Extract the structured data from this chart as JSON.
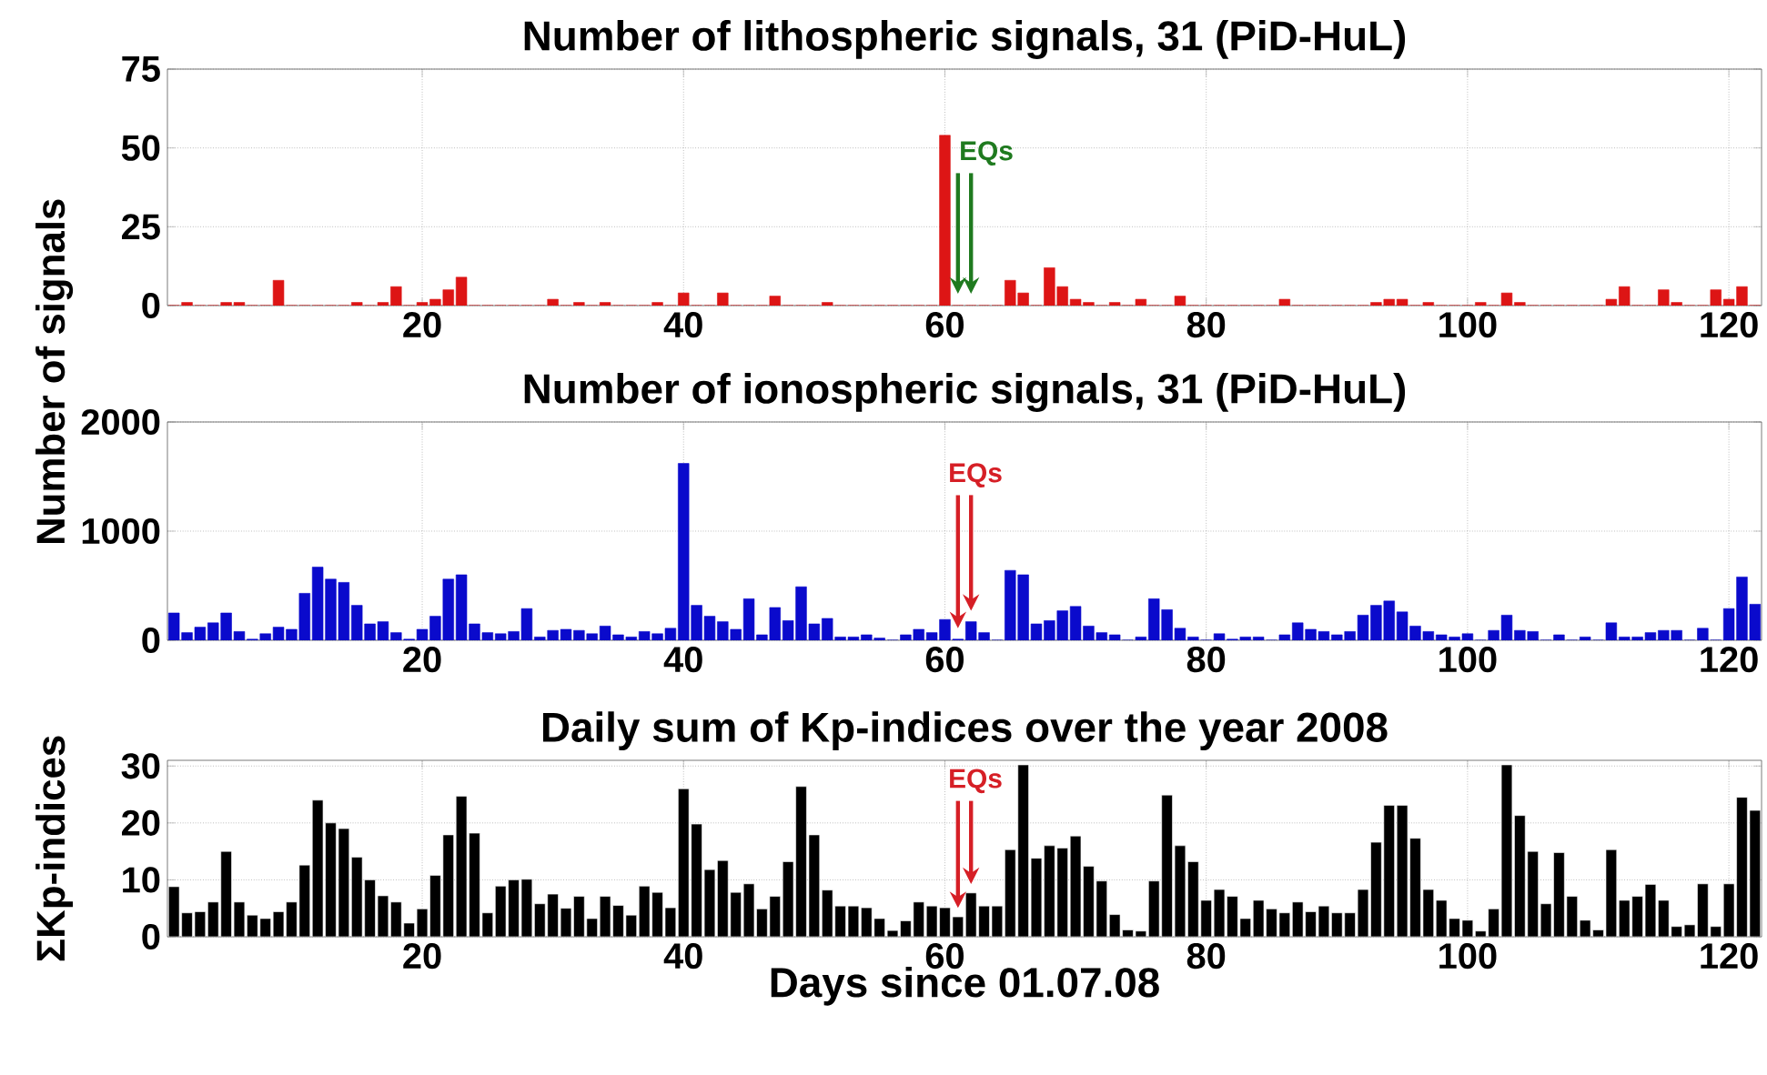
{
  "chart_data": [
    {
      "type": "bar",
      "title": "Number of lithospheric signals, 31 (PiD-HuL)",
      "ylabel": "Number of signals",
      "x": [
        1,
        2,
        3,
        4,
        5,
        6,
        7,
        8,
        9,
        10,
        11,
        12,
        13,
        14,
        15,
        16,
        17,
        18,
        19,
        20,
        21,
        22,
        23,
        24,
        25,
        26,
        27,
        28,
        29,
        30,
        31,
        32,
        33,
        34,
        35,
        36,
        37,
        38,
        39,
        40,
        41,
        42,
        43,
        44,
        45,
        46,
        47,
        48,
        49,
        50,
        51,
        52,
        53,
        54,
        55,
        56,
        57,
        58,
        59,
        60,
        61,
        62,
        63,
        64,
        65,
        66,
        67,
        68,
        69,
        70,
        71,
        72,
        73,
        74,
        75,
        76,
        77,
        78,
        79,
        80,
        81,
        82,
        83,
        84,
        85,
        86,
        87,
        88,
        89,
        90,
        91,
        92,
        93,
        94,
        95,
        96,
        97,
        98,
        99,
        100,
        101,
        102,
        103,
        104,
        105,
        106,
        107,
        108,
        109,
        110,
        111,
        112,
        113,
        114,
        115,
        116,
        117,
        118,
        119,
        120,
        121,
        122
      ],
      "values": [
        0,
        1,
        0,
        0,
        1,
        1,
        0,
        0,
        8,
        0,
        0,
        0,
        0,
        0,
        1,
        0,
        1,
        6,
        0,
        1,
        2,
        5,
        9,
        0,
        0,
        0,
        0,
        0,
        0,
        2,
        0,
        1,
        0,
        1,
        0,
        0,
        0,
        1,
        0,
        4,
        0,
        0,
        4,
        0,
        0,
        0,
        3,
        0,
        0,
        0,
        1,
        0,
        0,
        0,
        0,
        0,
        0,
        0,
        0,
        54,
        0,
        0,
        0,
        0,
        8,
        4,
        0,
        12,
        6,
        2,
        1,
        0,
        1,
        0,
        2,
        0,
        0,
        3,
        0,
        0,
        0,
        0,
        0,
        0,
        0,
        2,
        0,
        0,
        0,
        0,
        0,
        0,
        1,
        2,
        2,
        0,
        1,
        0,
        0,
        0,
        1,
        0,
        4,
        1,
        0,
        0,
        0,
        0,
        0,
        0,
        2,
        6,
        0,
        0,
        5,
        1,
        0,
        0,
        5,
        2,
        6,
        0
      ],
      "color": "#dd1515",
      "xlim": [
        0.5,
        122.5
      ],
      "ylim": [
        0,
        75
      ],
      "xticks": [
        20,
        40,
        60,
        80,
        100,
        120
      ],
      "yticks": [
        0,
        25,
        50,
        75
      ],
      "grid": true,
      "annotations": [
        "EQs"
      ],
      "ref_lines": [
        {
          "axis": "x",
          "value": 61,
          "color": "#1f7a1f"
        },
        {
          "axis": "x",
          "value": 62,
          "color": "#1f7a1f"
        }
      ]
    },
    {
      "type": "bar",
      "title": "Number of ionospheric signals, 31 (PiD-HuL)",
      "x": [
        1,
        2,
        3,
        4,
        5,
        6,
        7,
        8,
        9,
        10,
        11,
        12,
        13,
        14,
        15,
        16,
        17,
        18,
        19,
        20,
        21,
        22,
        23,
        24,
        25,
        26,
        27,
        28,
        29,
        30,
        31,
        32,
        33,
        34,
        35,
        36,
        37,
        38,
        39,
        40,
        41,
        42,
        43,
        44,
        45,
        46,
        47,
        48,
        49,
        50,
        51,
        52,
        53,
        54,
        55,
        56,
        57,
        58,
        59,
        60,
        61,
        62,
        63,
        64,
        65,
        66,
        67,
        68,
        69,
        70,
        71,
        72,
        73,
        74,
        75,
        76,
        77,
        78,
        79,
        80,
        81,
        82,
        83,
        84,
        85,
        86,
        87,
        88,
        89,
        90,
        91,
        92,
        93,
        94,
        95,
        96,
        97,
        98,
        99,
        100,
        101,
        102,
        103,
        104,
        105,
        106,
        107,
        108,
        109,
        110,
        111,
        112,
        113,
        114,
        115,
        116,
        117,
        118,
        119,
        120,
        121,
        122
      ],
      "values": [
        250,
        70,
        120,
        160,
        250,
        80,
        10,
        60,
        120,
        100,
        430,
        670,
        560,
        530,
        320,
        150,
        170,
        70,
        10,
        100,
        220,
        560,
        600,
        150,
        70,
        60,
        80,
        290,
        30,
        90,
        100,
        90,
        60,
        130,
        50,
        30,
        80,
        60,
        110,
        1620,
        320,
        220,
        170,
        100,
        380,
        50,
        300,
        180,
        490,
        150,
        200,
        30,
        30,
        50,
        20,
        0,
        50,
        100,
        70,
        190,
        10,
        170,
        70,
        0,
        640,
        600,
        150,
        180,
        270,
        310,
        130,
        70,
        50,
        0,
        30,
        380,
        280,
        110,
        30,
        0,
        60,
        10,
        30,
        30,
        0,
        50,
        160,
        100,
        80,
        50,
        80,
        230,
        320,
        360,
        260,
        130,
        80,
        50,
        30,
        60,
        0,
        90,
        230,
        90,
        80,
        0,
        50,
        0,
        30,
        0,
        160,
        30,
        30,
        70,
        90,
        90,
        0,
        110,
        0,
        290,
        580,
        330
      ],
      "color": "#0a0acc",
      "xlim": [
        0.5,
        122.5
      ],
      "ylim": [
        0,
        2000
      ],
      "xticks": [
        20,
        40,
        60,
        80,
        100,
        120
      ],
      "yticks": [
        0,
        1000,
        2000
      ],
      "grid": true,
      "annotations": [
        "EQs"
      ],
      "ref_lines": [
        {
          "axis": "x",
          "value": 61,
          "color": "#d61f26"
        },
        {
          "axis": "x",
          "value": 62,
          "color": "#d61f26"
        }
      ]
    },
    {
      "type": "bar",
      "title": "Daily sum of Kp-indices over the year 2008",
      "xlabel": "Days since 01.07.08",
      "ylabel": "ΣKp-indices",
      "x": [
        1,
        2,
        3,
        4,
        5,
        6,
        7,
        8,
        9,
        10,
        11,
        12,
        13,
        14,
        15,
        16,
        17,
        18,
        19,
        20,
        21,
        22,
        23,
        24,
        25,
        26,
        27,
        28,
        29,
        30,
        31,
        32,
        33,
        34,
        35,
        36,
        37,
        38,
        39,
        40,
        41,
        42,
        43,
        44,
        45,
        46,
        47,
        48,
        49,
        50,
        51,
        52,
        53,
        54,
        55,
        56,
        57,
        58,
        59,
        60,
        61,
        62,
        63,
        64,
        65,
        66,
        67,
        68,
        69,
        70,
        71,
        72,
        73,
        74,
        75,
        76,
        77,
        78,
        79,
        80,
        81,
        82,
        83,
        84,
        85,
        86,
        87,
        88,
        89,
        90,
        91,
        92,
        93,
        94,
        95,
        96,
        97,
        98,
        99,
        100,
        101,
        102,
        103,
        104,
        105,
        106,
        107,
        108,
        109,
        110,
        111,
        112,
        113,
        114,
        115,
        116,
        117,
        118,
        119,
        120,
        121,
        122
      ],
      "values": [
        8.8,
        4.2,
        4.4,
        6.1,
        15,
        6.1,
        3.8,
        3.2,
        4.4,
        6.1,
        12.6,
        24,
        20,
        19,
        14,
        10,
        7.2,
        6.1,
        2.4,
        4.9,
        10.8,
        17.9,
        24.7,
        18.2,
        4.2,
        8.9,
        10,
        10.1,
        5.8,
        7.5,
        5,
        7.1,
        3.2,
        7.1,
        5.5,
        3.8,
        8.9,
        7.8,
        5.1,
        26,
        19.8,
        11.8,
        13.4,
        7.8,
        9.3,
        4.9,
        7.1,
        13.2,
        26.4,
        17.9,
        8.2,
        5.4,
        5.4,
        5.1,
        3.2,
        1.1,
        2.8,
        6.1,
        5.4,
        5.1,
        3.5,
        7.7,
        5.4,
        5.4,
        15.3,
        30.2,
        13.8,
        16,
        15.6,
        17.7,
        12.4,
        9.8,
        3.9,
        1.2,
        1,
        9.8,
        24.9,
        16,
        13.2,
        6.4,
        8.3,
        7.1,
        3.2,
        6.4,
        4.9,
        4.2,
        6.1,
        4.4,
        5.4,
        4.2,
        4.2,
        8.3,
        16.6,
        23.1,
        23.1,
        17.3,
        8.3,
        6.4,
        3.2,
        2.9,
        1,
        4.9,
        30.2,
        21.3,
        15,
        5.8,
        14.8,
        7.1,
        2.9,
        1.2,
        15.3,
        6.4,
        7.1,
        9.2,
        6.4,
        1.8,
        2.1,
        9.3,
        1.8,
        9.3,
        24.5,
        22.2
      ],
      "color": "#000000",
      "xlim": [
        0.5,
        122.5
      ],
      "ylim": [
        0,
        31
      ],
      "xticks": [
        20,
        40,
        60,
        80,
        100,
        120
      ],
      "yticks": [
        0,
        10,
        20,
        30
      ],
      "grid": true,
      "annotations": [
        "EQs"
      ],
      "ref_lines": [
        {
          "axis": "x",
          "value": 61,
          "color": "#d61f26"
        },
        {
          "axis": "x",
          "value": 62,
          "color": "#d61f26"
        }
      ]
    }
  ]
}
